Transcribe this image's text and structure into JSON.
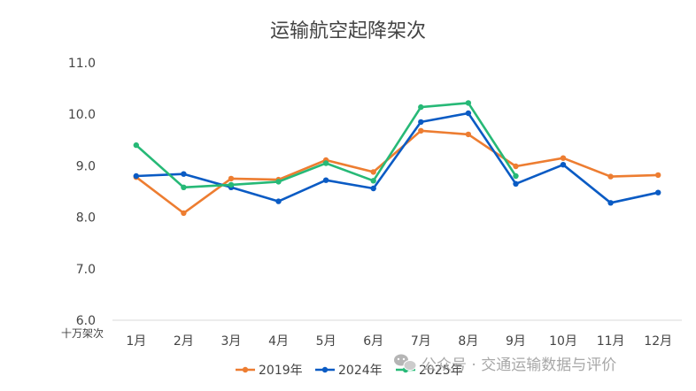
{
  "chart_data": {
    "type": "line",
    "title": "运输航空起降架次",
    "ylabel": "十万架次",
    "xlabel": "",
    "ylim": [
      6.0,
      11.0
    ],
    "yticks": [
      "6.0",
      "7.0",
      "8.0",
      "9.0",
      "10.0",
      "11.0"
    ],
    "categories": [
      "1月",
      "2月",
      "3月",
      "4月",
      "5月",
      "6月",
      "7月",
      "8月",
      "9月",
      "10月",
      "11月",
      "12月"
    ],
    "series": [
      {
        "name": "2019年",
        "color": "#ED7D31",
        "values": [
          8.78,
          8.08,
          8.75,
          8.73,
          9.11,
          8.88,
          9.68,
          9.61,
          8.99,
          9.15,
          8.79,
          8.82
        ]
      },
      {
        "name": "2024年",
        "color": "#0A5BC4",
        "values": [
          8.8,
          8.84,
          8.58,
          8.31,
          8.72,
          8.56,
          9.85,
          10.02,
          8.65,
          9.02,
          8.28,
          8.48
        ]
      },
      {
        "name": "2025年",
        "color": "#27B977",
        "values": [
          9.4,
          8.58,
          8.63,
          8.69,
          9.05,
          8.71,
          10.14,
          10.22,
          8.8,
          null,
          null,
          null
        ]
      }
    ],
    "grid": false,
    "legend": "bottom-center"
  },
  "watermark": {
    "text": "公众号 · 交通运输数据与评价",
    "icon": "wechat-icon"
  }
}
